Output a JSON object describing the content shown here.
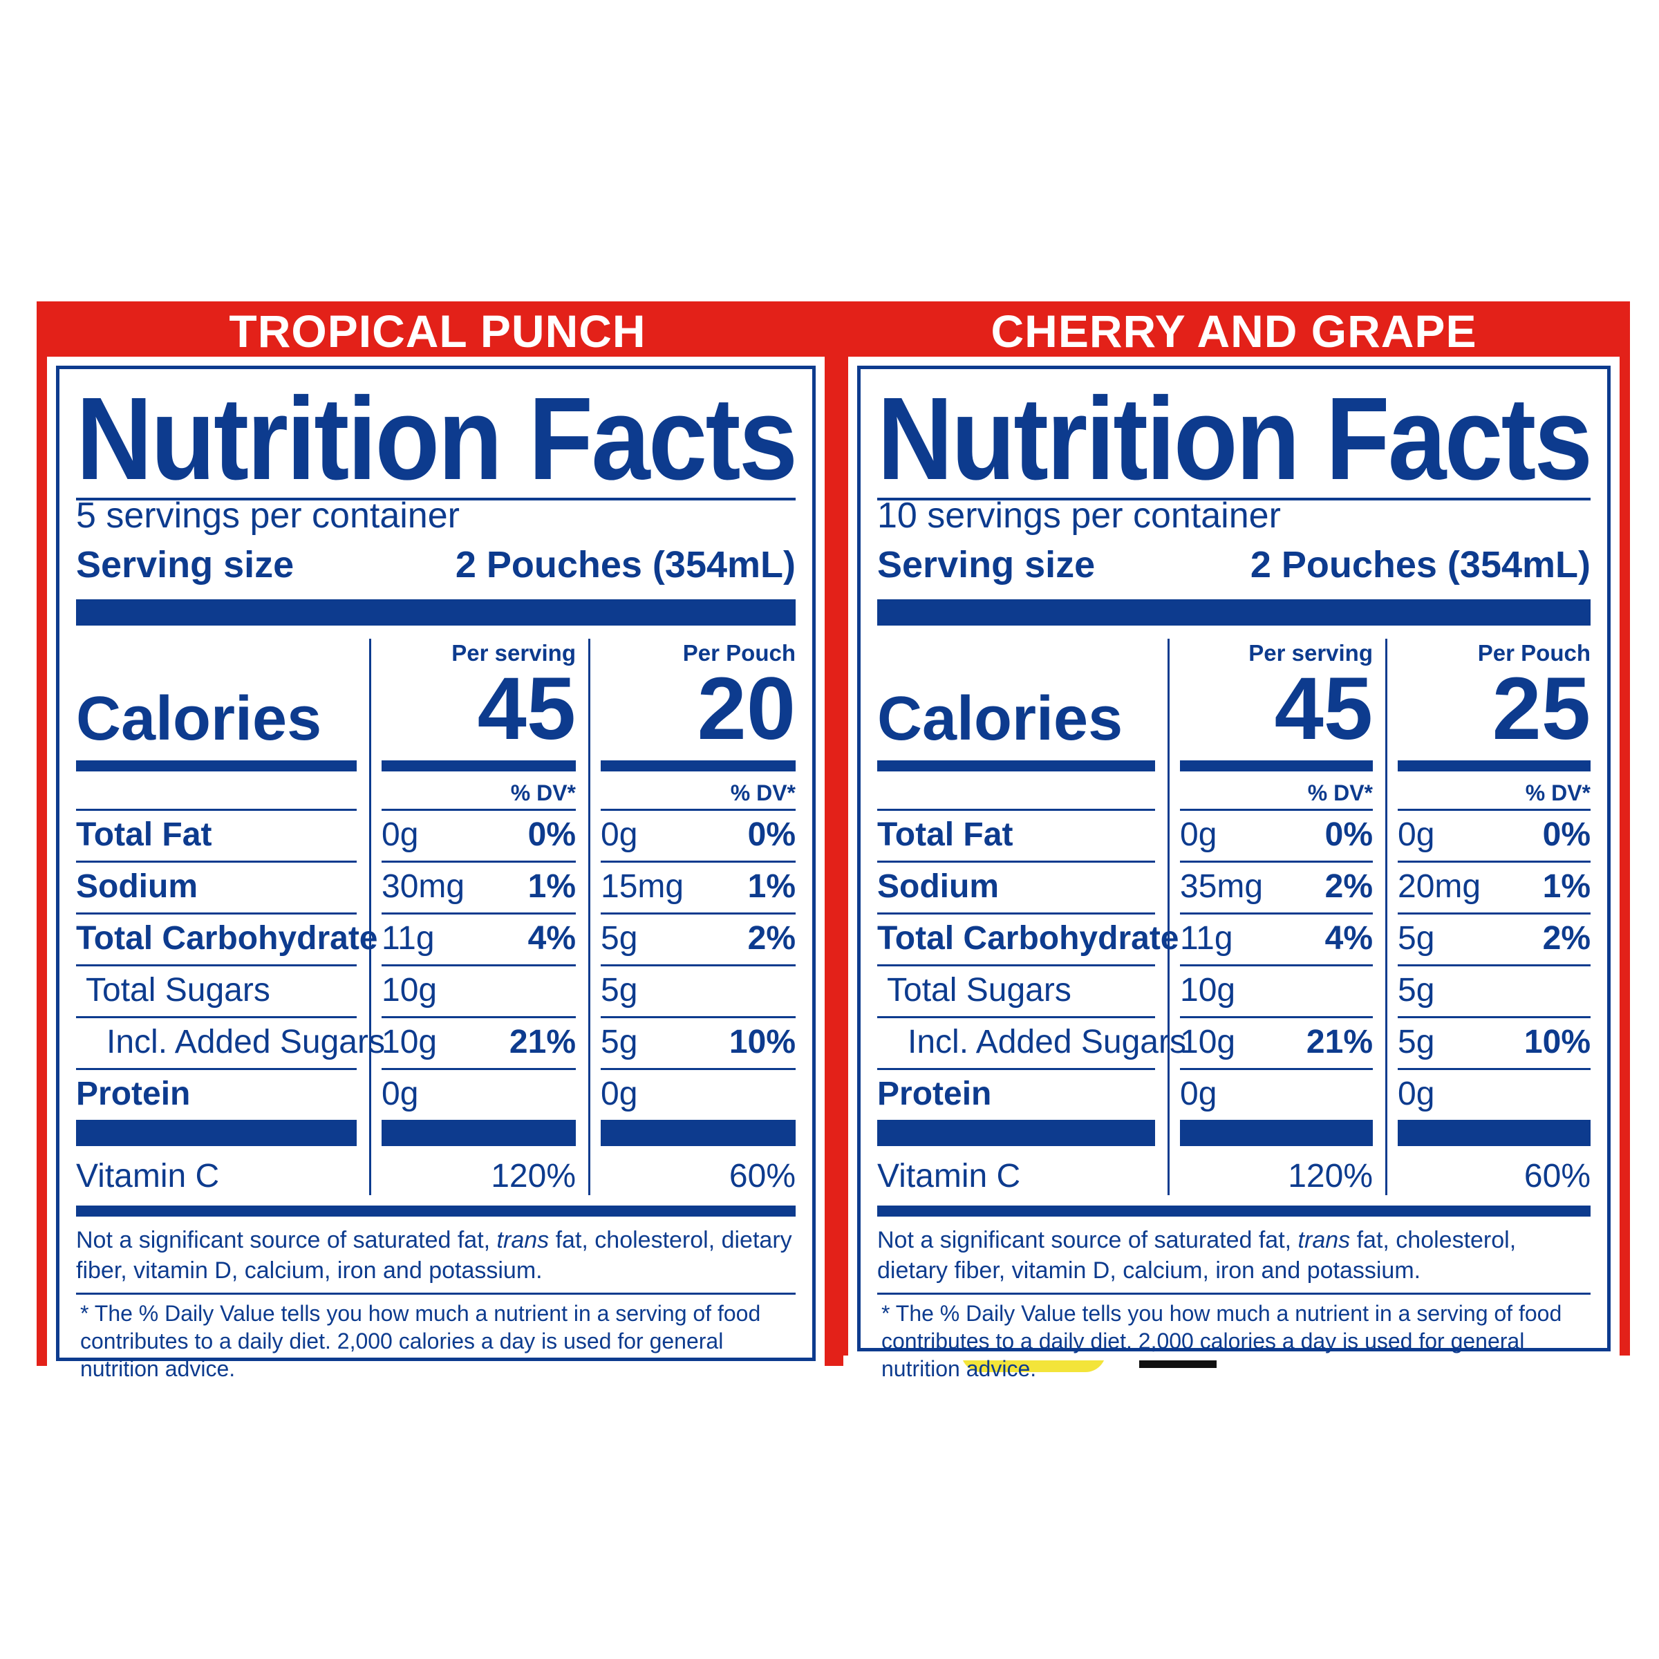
{
  "colors": {
    "banner": "#e32119",
    "ink": "#0d3b8e",
    "background": "#ffffff"
  },
  "panels": [
    {
      "flavor": "TROPICAL PUNCH",
      "title": "Nutrition Facts",
      "servings_per_container": "5 servings per container",
      "serving_size_label": "Serving size",
      "serving_size_value": "2 Pouches (354mL)",
      "calories_label": "Calories",
      "col1_header": "Per serving",
      "col2_header": "Per Pouch",
      "calories_col1": "45",
      "calories_col2": "20",
      "dv_header": "% DV*",
      "nutrients": [
        {
          "name": "Total Fat",
          "c1_amt": "0g",
          "c1_dv": "0%",
          "c2_amt": "0g",
          "c2_dv": "0%"
        },
        {
          "name": "Sodium",
          "c1_amt": "30mg",
          "c1_dv": "1%",
          "c2_amt": "15mg",
          "c2_dv": "1%"
        },
        {
          "name": "Total Carbohydrate",
          "c1_amt": "11g",
          "c1_dv": "4%",
          "c2_amt": "5g",
          "c2_dv": "2%"
        },
        {
          "name": "Total Sugars",
          "c1_amt": "10g",
          "c1_dv": "",
          "c2_amt": "5g",
          "c2_dv": ""
        },
        {
          "name": "Incl. Added Sugars",
          "c1_amt": "10g",
          "c1_dv": "21%",
          "c2_amt": "5g",
          "c2_dv": "10%"
        },
        {
          "name": "Protein",
          "c1_amt": "0g",
          "c1_dv": "",
          "c2_amt": "0g",
          "c2_dv": ""
        }
      ],
      "vitamin_label": "Vitamin C",
      "vitamin_c1": "120%",
      "vitamin_c2": "60%",
      "note_pre": "Not a significant source of saturated fat, ",
      "note_italic": "trans",
      "note_post": " fat, cholesterol, dietary fiber, vitamin D, calcium, iron and potassium.",
      "footnote": "* The % Daily Value tells you how much a nutrient in a serving of food contributes to a daily diet. 2,000 calories a day is used for general nutrition advice."
    },
    {
      "flavor": "CHERRY AND GRAPE",
      "title": "Nutrition Facts",
      "servings_per_container": "10 servings per container",
      "serving_size_label": "Serving size",
      "serving_size_value": "2 Pouches (354mL)",
      "calories_label": "Calories",
      "col1_header": "Per serving",
      "col2_header": "Per Pouch",
      "calories_col1": "45",
      "calories_col2": "25",
      "dv_header": "% DV*",
      "nutrients": [
        {
          "name": "Total Fat",
          "c1_amt": "0g",
          "c1_dv": "0%",
          "c2_amt": "0g",
          "c2_dv": "0%"
        },
        {
          "name": "Sodium",
          "c1_amt": "35mg",
          "c1_dv": "2%",
          "c2_amt": "20mg",
          "c2_dv": "1%"
        },
        {
          "name": "Total Carbohydrate",
          "c1_amt": "11g",
          "c1_dv": "4%",
          "c2_amt": "5g",
          "c2_dv": "2%"
        },
        {
          "name": "Total Sugars",
          "c1_amt": "10g",
          "c1_dv": "",
          "c2_amt": "5g",
          "c2_dv": ""
        },
        {
          "name": "Incl. Added Sugars",
          "c1_amt": "10g",
          "c1_dv": "21%",
          "c2_amt": "5g",
          "c2_dv": "10%"
        },
        {
          "name": "Protein",
          "c1_amt": "0g",
          "c1_dv": "",
          "c2_amt": "0g",
          "c2_dv": ""
        }
      ],
      "vitamin_label": "Vitamin C",
      "vitamin_c1": "120%",
      "vitamin_c2": "60%",
      "note_pre": "Not a significant source of saturated fat, ",
      "note_italic": "trans",
      "note_post": " fat, cholesterol, dietary fiber, vitamin D, calcium, iron and potassium.",
      "footnote": "* The % Daily Value tells you how much a nutrient in a serving of food contributes to a daily diet. 2,000 calories a day is used for general nutrition advice."
    }
  ]
}
